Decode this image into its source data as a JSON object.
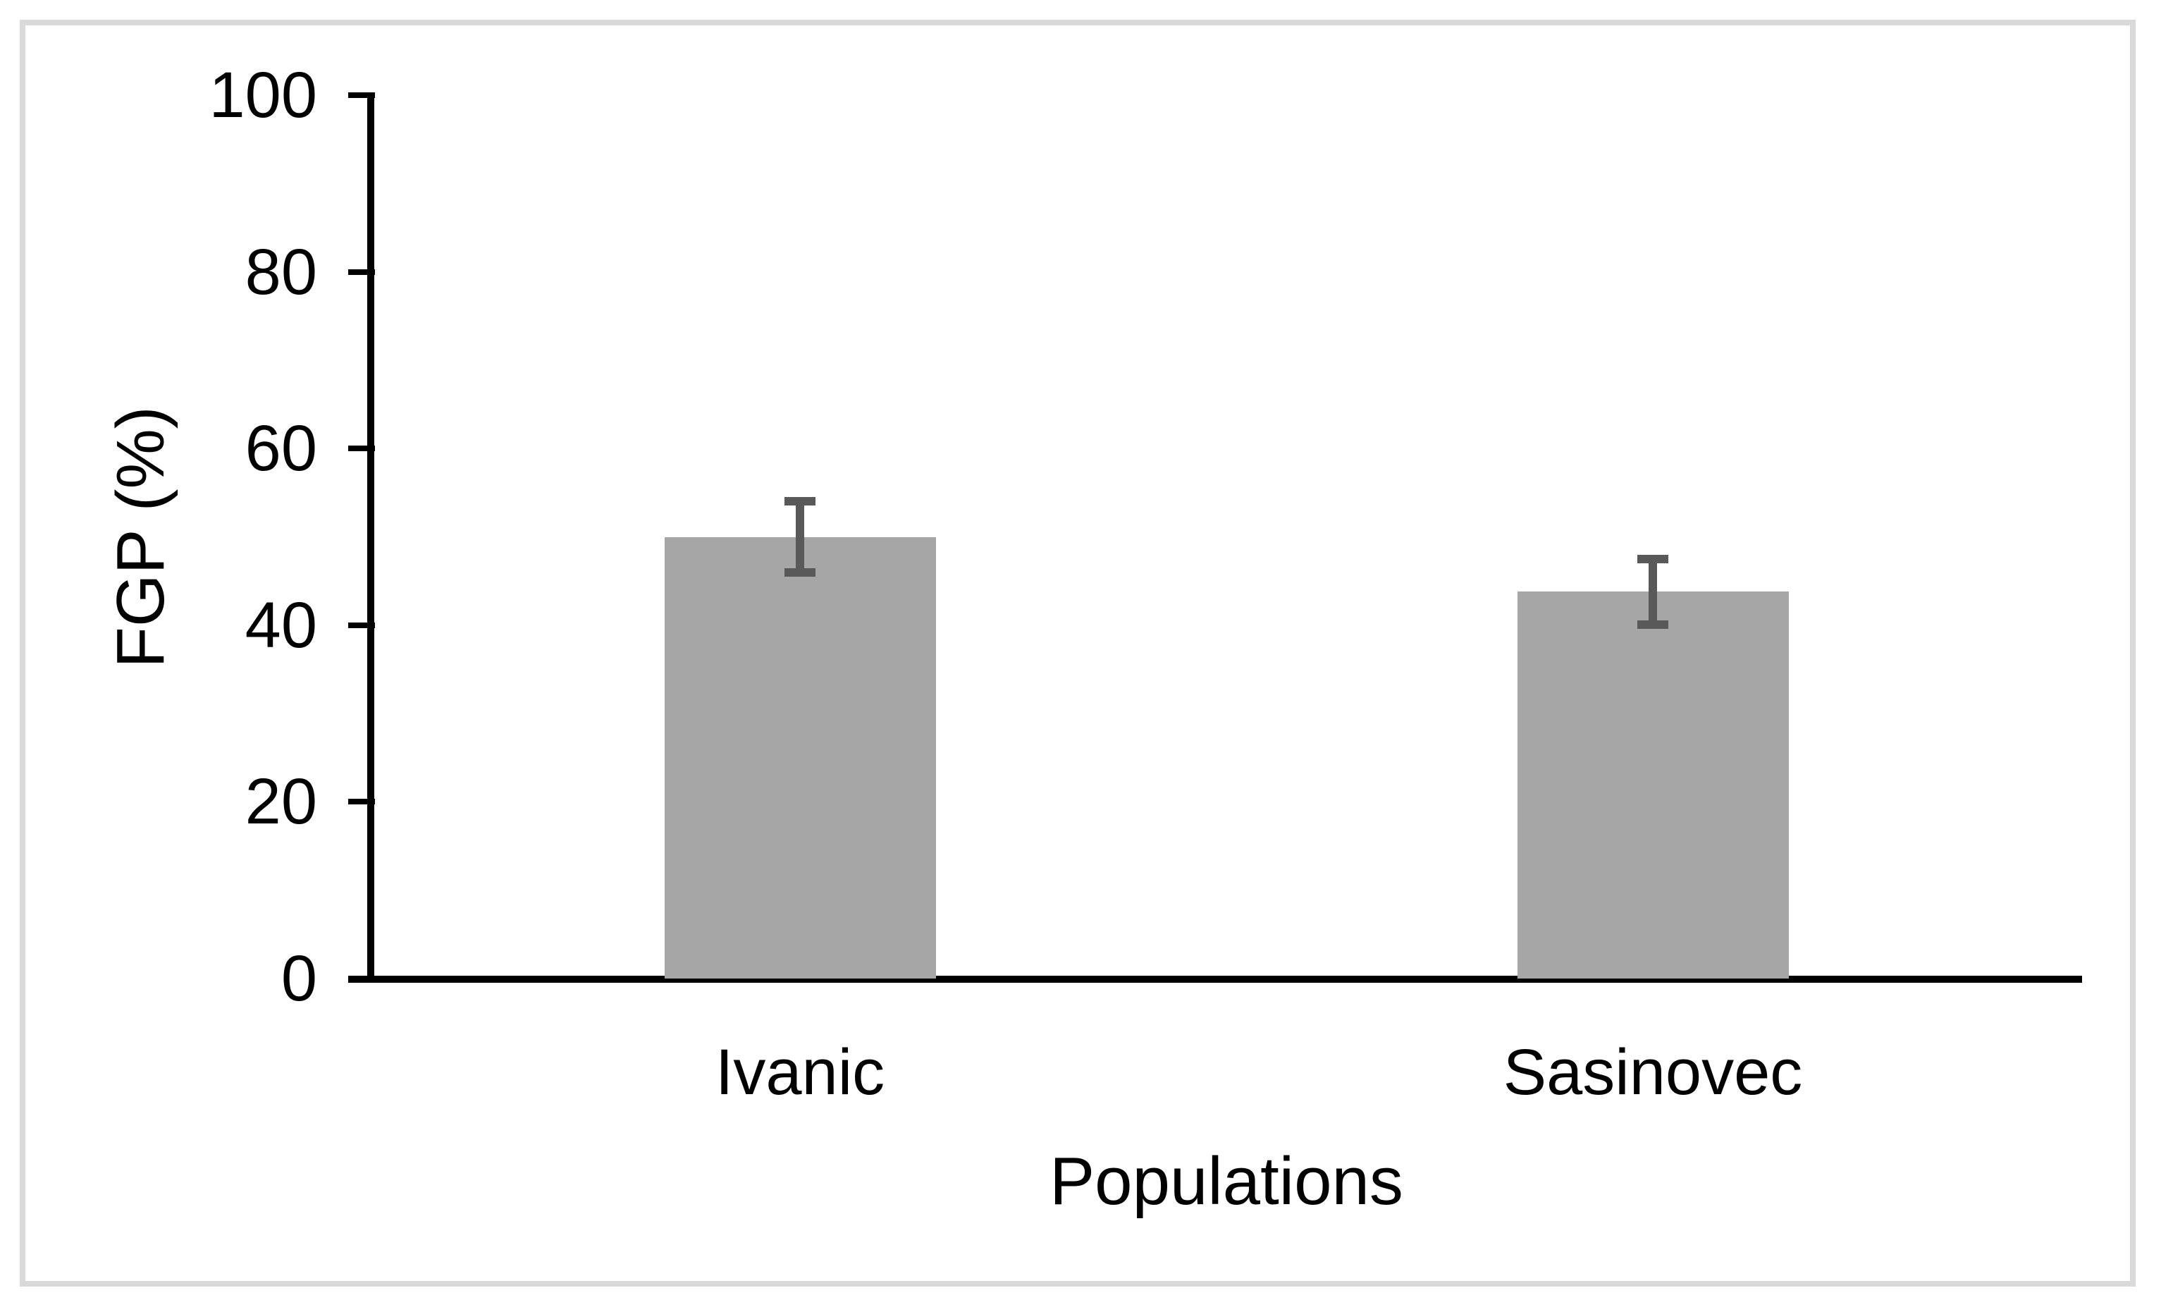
{
  "figure": {
    "background": "#ffffff",
    "frame_color": "#d9d9d9",
    "text_color": "#000000"
  },
  "chart_data": {
    "type": "bar",
    "title": "",
    "categories": [
      "Ivanic",
      "Sasinovec"
    ],
    "values": [
      50.0,
      43.8
    ],
    "errors": [
      4.0,
      3.7
    ],
    "series": [
      {
        "name": "FGP",
        "values": [
          50.0,
          43.8
        ],
        "errors": [
          4.0,
          3.7
        ]
      }
    ],
    "xlabel": "Populations",
    "ylabel": "FGP (%)",
    "ylim": [
      0,
      100
    ],
    "yticks": [
      0,
      20,
      40,
      60,
      80,
      100
    ],
    "ytick_labels": [
      "0",
      "20",
      "40",
      "60",
      "80",
      "100"
    ],
    "grid": false,
    "legend": false,
    "bar_color": "#a6a6a6",
    "error_bar_color": "#595959",
    "axis_color": "#000000"
  }
}
